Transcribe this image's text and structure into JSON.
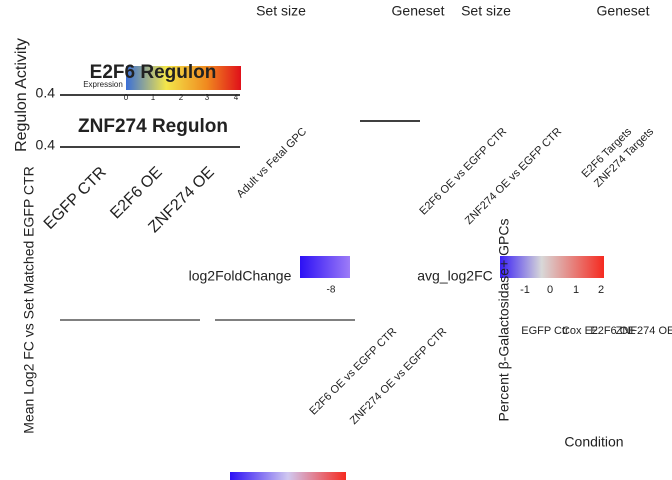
{
  "panel_titles": [
    "E2F6 Regulon",
    "ZNF274 Regulon"
  ],
  "header_labels": [
    "Set size",
    "Geneset",
    "Set size",
    "Geneset"
  ],
  "axis_titles": [
    "Regulon Activity",
    "Mean Log2 FC vs Set Matched EGFP CTR",
    "Percent β-Galactosidase+ GPCs",
    "Condition"
  ],
  "legend_titles": [
    "Expression",
    "log2FoldChange",
    "avg_log2FC"
  ],
  "expression_ticks": [
    "0",
    "1",
    "2",
    "3",
    "4"
  ],
  "log2fc_ticks": [
    "-8"
  ],
  "avg_ticks": [
    "-1",
    "0",
    "1",
    "2"
  ],
  "y_ticks": [
    "0.4",
    "0.4"
  ],
  "group_labels": [
    "EGFP CTR",
    "E2F6 OE",
    "ZNF274 OE"
  ],
  "comparison_labels": [
    "Adult vs Fetal GPC",
    "E2F6 OE vs EGFP CTR",
    "ZNF274 OE vs EGFP CTR",
    "E2F6 Targets",
    "ZNF274 Targets",
    "E2F6 OE vs EGFP CTR",
    "ZNF274 OE vs EGFP CTR"
  ],
  "condition_labels": [
    "EGFP Ctr",
    "Cox E2",
    "E2F6 OE",
    "ZNF274 OE"
  ]
}
